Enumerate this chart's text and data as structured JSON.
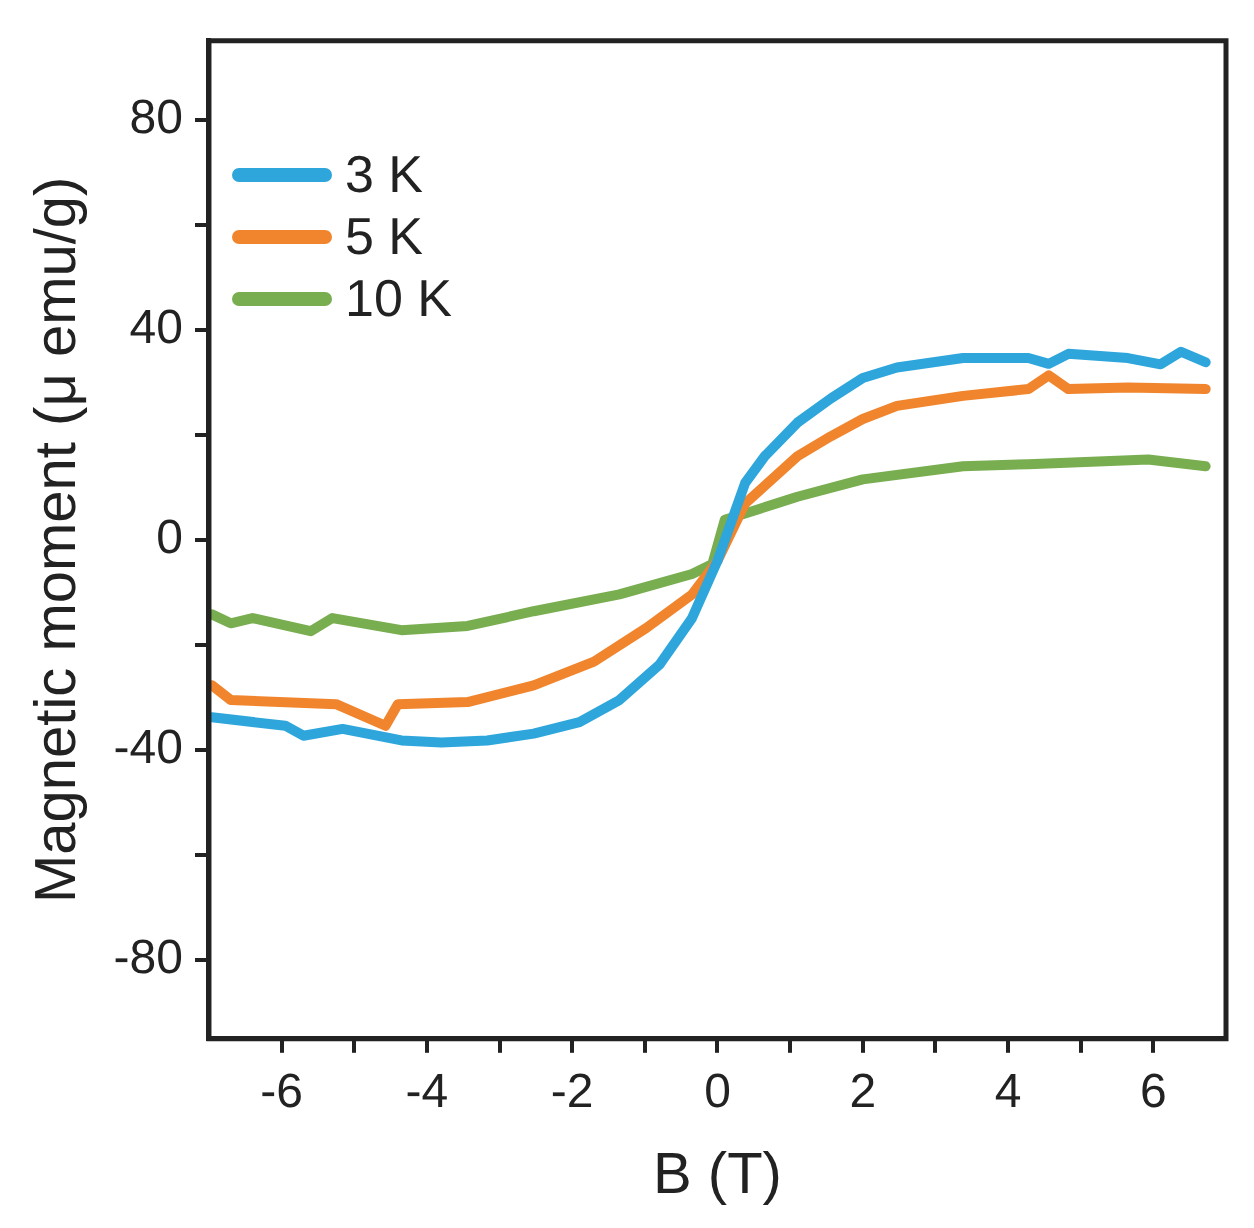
{
  "chart_data": {
    "type": "line",
    "xlabel": "B (T)",
    "ylabel": "Magnetic moment (μ emu/g)",
    "xlim": [
      -7,
      7
    ],
    "ylim": [
      -95,
      95
    ],
    "xticks": [
      -6,
      {
        "value": -5,
        "label": null
      },
      -4,
      {
        "value": -3,
        "label": null
      },
      -2,
      {
        "value": -1,
        "label": null
      },
      0,
      {
        "value": 1,
        "label": null
      },
      2,
      {
        "value": 3,
        "label": null
      },
      4,
      {
        "value": 5,
        "label": null
      },
      6
    ],
    "yticks": [
      -80,
      {
        "value": -60,
        "label": null
      },
      -40,
      {
        "value": -20,
        "label": null
      },
      0,
      {
        "value": 20,
        "label": null
      },
      40,
      {
        "value": 60,
        "label": null
      },
      80
    ],
    "grid": false,
    "legend": "top left",
    "marker": "none",
    "line_style": "solid",
    "series": [
      {
        "name": "3 K",
        "color": "#2ea6dc",
        "x": [
          -6.96,
          -5.95,
          -5.7,
          -5.16,
          -4.35,
          -3.8,
          -3.17,
          -2.53,
          -1.9,
          -1.35,
          -0.8,
          -0.35,
          0,
          0.38,
          0.65,
          1.1,
          1.56,
          2.0,
          2.47,
          3.38,
          4.28,
          4.56,
          4.83,
          5.65,
          6.1,
          6.38,
          6.72
        ],
        "values": [
          -33.8,
          -35.4,
          -37.3,
          -36,
          -38.2,
          -38.6,
          -38.2,
          -36.9,
          -34.7,
          -30.5,
          -23.8,
          -14.9,
          -4,
          10.8,
          15.9,
          22.3,
          26.9,
          30.8,
          32.8,
          34.6,
          34.6,
          33.5,
          35.4,
          34.6,
          33.4,
          35.8,
          33.8
        ]
      },
      {
        "name": "5 K",
        "color": "#f0852d",
        "x": [
          -6.96,
          -6.7,
          -5.25,
          -4.57,
          -4.4,
          -3.44,
          -2.53,
          -1.7,
          -0.98,
          -0.35,
          0,
          0.38,
          1.1,
          1.56,
          2.0,
          2.47,
          3.38,
          4.28,
          4.56,
          4.83,
          5.65,
          6.72
        ],
        "values": [
          -27.7,
          -30.5,
          -31.3,
          -35.4,
          -31.3,
          -30.9,
          -27.7,
          -23.2,
          -16.8,
          -10.4,
          -4,
          6.9,
          15.9,
          19.7,
          23,
          25.5,
          27.4,
          28.7,
          31.3,
          28.7,
          29,
          28.7
        ]
      },
      {
        "name": "10 K",
        "color": "#78ad50",
        "x": [
          -6.96,
          -6.7,
          -6.4,
          -5.6,
          -5.3,
          -4.35,
          -3.44,
          -2.53,
          -1.35,
          -0.35,
          -0.07,
          0.1,
          0.38,
          1.1,
          2.0,
          3.38,
          4.28,
          5.93,
          6.72
        ],
        "values": [
          -14.2,
          -15.9,
          -14.9,
          -17.4,
          -14.9,
          -17.2,
          -16.4,
          -13.6,
          -10.4,
          -6.5,
          -4.6,
          3.8,
          5,
          8.2,
          11.5,
          14,
          14.4,
          15.3,
          14
        ]
      }
    ]
  }
}
